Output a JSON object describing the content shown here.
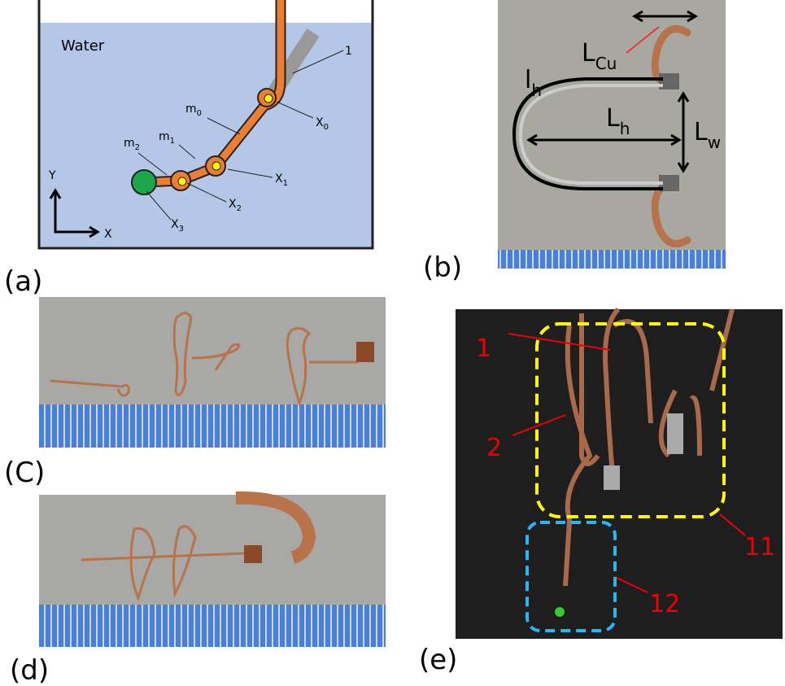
{
  "panel_a": {
    "label": "(a)",
    "water": "Water",
    "rod_label": "1",
    "masses": [
      {
        "base": "m",
        "sub": "0"
      },
      {
        "base": "m",
        "sub": "1"
      },
      {
        "base": "m",
        "sub": "2"
      }
    ],
    "joints": [
      {
        "base": "X",
        "sub": "0"
      },
      {
        "base": "X",
        "sub": "1"
      },
      {
        "base": "X",
        "sub": "2"
      },
      {
        "base": "X",
        "sub": "3"
      }
    ],
    "axes": {
      "y": "Y",
      "x": "X"
    }
  },
  "panel_b": {
    "label": "(b)",
    "lengths": [
      {
        "base": "L",
        "sub": "Cu"
      },
      {
        "base": "l",
        "sub": "h"
      },
      {
        "base": "L",
        "sub": "h"
      },
      {
        "base": "L",
        "sub": "w"
      }
    ]
  },
  "panel_c": {
    "label": "(C)"
  },
  "panel_d": {
    "label": "(d)"
  },
  "panel_e": {
    "label": "(e)",
    "callouts": [
      "1",
      "2",
      "11",
      "12"
    ]
  }
}
